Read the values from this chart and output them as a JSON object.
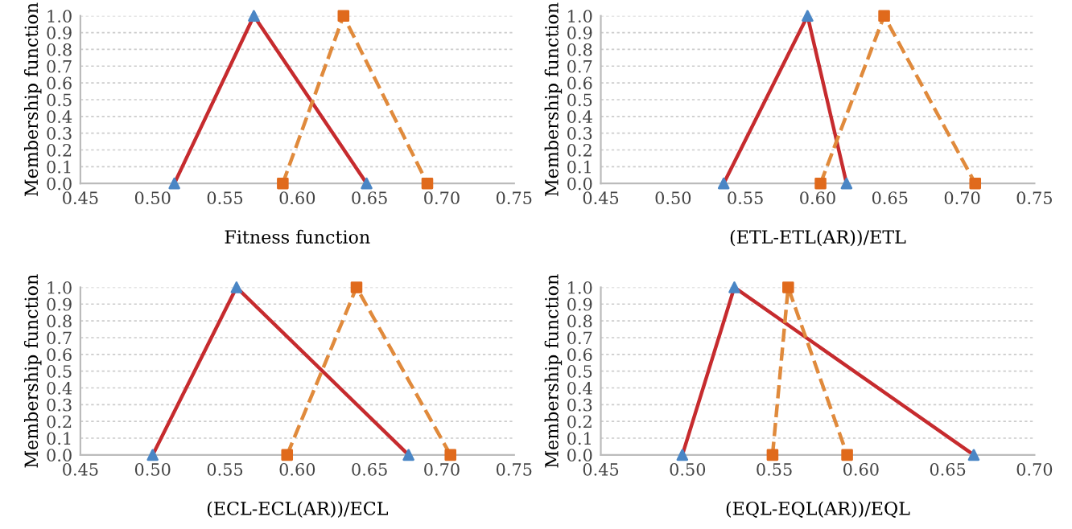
{
  "chart_data": [
    {
      "type": "line",
      "xlabel": "Fitness function",
      "ylabel": "Membership function",
      "xlim": [
        0.45,
        0.75
      ],
      "xticks": [
        {
          "value": 0.45,
          "label": "0.45"
        },
        {
          "value": 0.5,
          "label": "0.50"
        },
        {
          "value": 0.55,
          "label": "0.55"
        },
        {
          "value": 0.6,
          "label": "0.60"
        },
        {
          "value": 0.65,
          "label": "0.65"
        },
        {
          "value": 0.7,
          "label": "0.70"
        },
        {
          "value": 0.75,
          "label": "0.75"
        }
      ],
      "ylim": [
        0,
        1
      ],
      "yticks": [
        {
          "value": 0,
          "label": "0.0"
        },
        {
          "value": 0.1,
          "label": "0.1"
        },
        {
          "value": 0.2,
          "label": "0.2"
        },
        {
          "value": 0.3,
          "label": "0.3"
        },
        {
          "value": 0.4,
          "label": "0.4"
        },
        {
          "value": 0.5,
          "label": "0.5"
        },
        {
          "value": 0.6,
          "label": "0.6"
        },
        {
          "value": 0.7,
          "label": "0.7"
        },
        {
          "value": 0.8,
          "label": "0.8"
        },
        {
          "value": 0.9,
          "label": "0.9"
        },
        {
          "value": 1,
          "label": "1.0"
        }
      ],
      "grid": "y",
      "legend": false,
      "series": [
        {
          "color": "#c62b2e",
          "colors": [
            "#4a86c5",
            "#4a86c5",
            "#4a86c5"
          ],
          "marker": "triangle",
          "line_style": "solid",
          "x": [
            0.515,
            0.57,
            0.648
          ],
          "values": [
            0,
            1,
            0
          ]
        },
        {
          "color": "#e08a3c",
          "colors": [
            "#e06a1c",
            "#e06a1c",
            "#e06a1c"
          ],
          "marker": "square",
          "line_style": "dashed",
          "x": [
            0.59,
            0.632,
            0.69
          ],
          "values": [
            0,
            1,
            0
          ]
        }
      ]
    },
    {
      "type": "line",
      "xlabel": "(ETL-ETL(AR))/ETL",
      "ylabel": "Membership function",
      "xlim": [
        0.45,
        0.75
      ],
      "xticks": [
        {
          "value": 0.45,
          "label": "0.45"
        },
        {
          "value": 0.5,
          "label": "0.50"
        },
        {
          "value": 0.55,
          "label": "0.55"
        },
        {
          "value": 0.6,
          "label": "0.60"
        },
        {
          "value": 0.65,
          "label": "0.65"
        },
        {
          "value": 0.7,
          "label": "0.70"
        },
        {
          "value": 0.75,
          "label": "0.75"
        }
      ],
      "ylim": [
        0,
        1
      ],
      "yticks": [
        {
          "value": 0,
          "label": "0.0"
        },
        {
          "value": 0.1,
          "label": "0.1"
        },
        {
          "value": 0.2,
          "label": "0.2"
        },
        {
          "value": 0.3,
          "label": "0.3"
        },
        {
          "value": 0.4,
          "label": "0.4"
        },
        {
          "value": 0.5,
          "label": "0.5"
        },
        {
          "value": 0.6,
          "label": "0.6"
        },
        {
          "value": 0.7,
          "label": "0.7"
        },
        {
          "value": 0.8,
          "label": "0.8"
        },
        {
          "value": 0.9,
          "label": "0.9"
        },
        {
          "value": 1,
          "label": "1.0"
        }
      ],
      "grid": "y",
      "legend": false,
      "series": [
        {
          "color": "#c62b2e",
          "colors": [
            "#4a86c5",
            "#4a86c5",
            "#4a86c5"
          ],
          "marker": "triangle",
          "line_style": "solid",
          "x": [
            0.535,
            0.593,
            0.62
          ],
          "values": [
            0,
            1,
            0
          ]
        },
        {
          "color": "#e08a3c",
          "colors": [
            "#e06a1c",
            "#e06a1c",
            "#e06a1c"
          ],
          "marker": "square",
          "line_style": "dashed",
          "x": [
            0.602,
            0.646,
            0.709
          ],
          "values": [
            0,
            1,
            0
          ]
        }
      ]
    },
    {
      "type": "line",
      "xlabel": "(ECL-ECL(AR))/ECL",
      "ylabel": "Membership function",
      "xlim": [
        0.45,
        0.75
      ],
      "xticks": [
        {
          "value": 0.45,
          "label": "0.45"
        },
        {
          "value": 0.5,
          "label": "0.50"
        },
        {
          "value": 0.55,
          "label": "0.55"
        },
        {
          "value": 0.6,
          "label": "0.60"
        },
        {
          "value": 0.65,
          "label": "0.65"
        },
        {
          "value": 0.7,
          "label": "0.70"
        },
        {
          "value": 0.75,
          "label": "0.75"
        }
      ],
      "ylim": [
        0,
        1
      ],
      "yticks": [
        {
          "value": 0,
          "label": "0.0"
        },
        {
          "value": 0.1,
          "label": "0.1"
        },
        {
          "value": 0.2,
          "label": "0.2"
        },
        {
          "value": 0.3,
          "label": "0.3"
        },
        {
          "value": 0.4,
          "label": "0.4"
        },
        {
          "value": 0.5,
          "label": "0.5"
        },
        {
          "value": 0.6,
          "label": "0.6"
        },
        {
          "value": 0.7,
          "label": "0.7"
        },
        {
          "value": 0.8,
          "label": "0.8"
        },
        {
          "value": 0.9,
          "label": "0.9"
        },
        {
          "value": 1,
          "label": "1.0"
        }
      ],
      "grid": "y",
      "legend": false,
      "series": [
        {
          "color": "#c62b2e",
          "colors": [
            "#4a86c5",
            "#4a86c5",
            "#4a86c5"
          ],
          "marker": "triangle",
          "line_style": "solid",
          "x": [
            0.5,
            0.558,
            0.677
          ],
          "values": [
            0,
            1,
            0
          ]
        },
        {
          "color": "#e08a3c",
          "colors": [
            "#e06a1c",
            "#e06a1c",
            "#e06a1c"
          ],
          "marker": "square",
          "line_style": "dashed",
          "x": [
            0.593,
            0.641,
            0.706
          ],
          "values": [
            0,
            1,
            0
          ]
        }
      ]
    },
    {
      "type": "line",
      "xlabel": "(EQL-EQL(AR))/EQL",
      "ylabel": "Membership function",
      "xlim": [
        0.45,
        0.7
      ],
      "xticks": [
        {
          "value": 0.45,
          "label": "0.45"
        },
        {
          "value": 0.5,
          "label": "0.50"
        },
        {
          "value": 0.55,
          "label": "0.55"
        },
        {
          "value": 0.6,
          "label": "0.60"
        },
        {
          "value": 0.65,
          "label": "0.65"
        },
        {
          "value": 0.7,
          "label": "0.70"
        }
      ],
      "ylim": [
        0,
        1
      ],
      "yticks": [
        {
          "value": 0,
          "label": "0.0"
        },
        {
          "value": 0.1,
          "label": "0.1"
        },
        {
          "value": 0.2,
          "label": "0.2"
        },
        {
          "value": 0.3,
          "label": "0.3"
        },
        {
          "value": 0.4,
          "label": "0.4"
        },
        {
          "value": 0.5,
          "label": "0.5"
        },
        {
          "value": 0.6,
          "label": "0.6"
        },
        {
          "value": 0.7,
          "label": "0.7"
        },
        {
          "value": 0.8,
          "label": "0.8"
        },
        {
          "value": 0.9,
          "label": "0.9"
        },
        {
          "value": 1,
          "label": "1.0"
        }
      ],
      "grid": "y",
      "legend": false,
      "series": [
        {
          "color": "#c62b2e",
          "colors": [
            "#4a86c5",
            "#4a86c5",
            "#4a86c5"
          ],
          "marker": "triangle",
          "line_style": "solid",
          "x": [
            0.497,
            0.527,
            0.665
          ],
          "values": [
            0,
            1,
            0
          ]
        },
        {
          "color": "#e08a3c",
          "colors": [
            "#e06a1c",
            "#e06a1c",
            "#e06a1c"
          ],
          "marker": "square",
          "line_style": "dashed",
          "x": [
            0.549,
            0.558,
            0.592
          ],
          "values": [
            0,
            1,
            0
          ]
        }
      ]
    }
  ]
}
